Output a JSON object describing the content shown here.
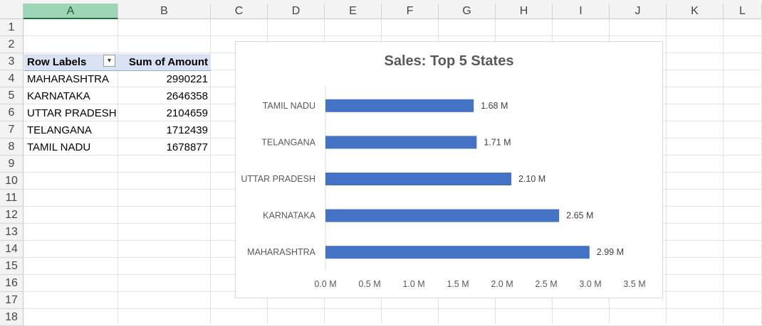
{
  "columns": [
    "A",
    "B",
    "C",
    "D",
    "E",
    "F",
    "G",
    "H",
    "I",
    "J",
    "K",
    "L"
  ],
  "rows": [
    "1",
    "2",
    "3",
    "4",
    "5",
    "6",
    "7",
    "8",
    "9",
    "10",
    "11",
    "12",
    "13",
    "14",
    "15",
    "16",
    "17",
    "18"
  ],
  "pivot": {
    "header_label": "Row Labels",
    "header_value": "Sum of Amount",
    "filter_icon": "filter-dropdown-icon",
    "rows": [
      {
        "label": "MAHARASHTRA",
        "amount": "2990221"
      },
      {
        "label": "KARNATAKA",
        "amount": "2646358"
      },
      {
        "label": "UTTAR PRADESH",
        "amount": "2104659"
      },
      {
        "label": "TELANGANA",
        "amount": "1712439"
      },
      {
        "label": "TAMIL NADU",
        "amount": "1678877"
      }
    ]
  },
  "chart_data": {
    "type": "bar",
    "orientation": "horizontal",
    "title": "Sales: Top 5 States",
    "categories": [
      "MAHARASHTRA",
      "KARNATAKA",
      "UTTAR PRADESH",
      "TELANGANA",
      "TAMIL NADU"
    ],
    "values": [
      2990221,
      2646358,
      2104659,
      1712439,
      1678877
    ],
    "data_labels": [
      "2.99 M",
      "2.65 M",
      "2.10 M",
      "1.71 M",
      "1.68 M"
    ],
    "xlim": [
      0,
      3500000
    ],
    "x_ticks": [
      "0.0 M",
      "0.5 M",
      "1.0 M",
      "1.5 M",
      "2.0 M",
      "2.5 M",
      "3.0 M",
      "3.5 M"
    ],
    "bar_color": "#4472c4",
    "grid": false,
    "legend": "none"
  }
}
